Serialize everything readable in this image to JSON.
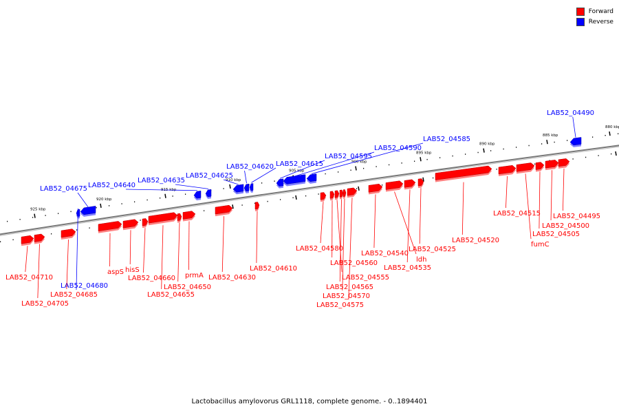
{
  "colors": {
    "forward": "#ff0000",
    "reverse": "#0000ff",
    "backbone": "#777777"
  },
  "legend": [
    {
      "label": "Forward",
      "color": "#ff0000"
    },
    {
      "label": "Reverse",
      "color": "#0000ff"
    }
  ],
  "caption": "Lactobacillus amylovorus GRL1118, complete genome. - 0..1894401",
  "ticks": [
    {
      "label": "925 kbp"
    },
    {
      "label": "920 kbp"
    },
    {
      "label": "915 kbp"
    },
    {
      "label": "910 kbp"
    },
    {
      "label": "905 kbp"
    },
    {
      "label": "900 kbp"
    },
    {
      "label": "895 kbp"
    },
    {
      "label": "890 kbp"
    },
    {
      "label": "885 kbp"
    },
    {
      "label": "880 kbp"
    }
  ],
  "genes": [
    {
      "label": "LAB52_04490",
      "strand": "reverse"
    },
    {
      "label": "LAB52_04585",
      "strand": "reverse"
    },
    {
      "label": "LAB52_04590",
      "strand": "reverse"
    },
    {
      "label": "LAB52_04595",
      "strand": "reverse"
    },
    {
      "label": "LAB52_04615",
      "strand": "reverse"
    },
    {
      "label": "LAB52_04620",
      "strand": "reverse"
    },
    {
      "label": "LAB52_04625",
      "strand": "reverse"
    },
    {
      "label": "LAB52_04635",
      "strand": "reverse"
    },
    {
      "label": "LAB52_04640",
      "strand": "reverse"
    },
    {
      "label": "LAB52_04675",
      "strand": "reverse"
    },
    {
      "label": "LAB52_04680",
      "strand": "reverse"
    },
    {
      "label": "LAB52_04710",
      "strand": "forward"
    },
    {
      "label": "LAB52_04705",
      "strand": "forward"
    },
    {
      "label": "LAB52_04685",
      "strand": "forward"
    },
    {
      "label": "aspS",
      "strand": "forward"
    },
    {
      "label": "hisS",
      "strand": "forward"
    },
    {
      "label": "LAB52_04660",
      "strand": "forward"
    },
    {
      "label": "LAB52_04655",
      "strand": "forward"
    },
    {
      "label": "LAB52_04650",
      "strand": "forward"
    },
    {
      "label": "prmA",
      "strand": "forward"
    },
    {
      "label": "LAB52_04630",
      "strand": "forward"
    },
    {
      "label": "LAB52_04610",
      "strand": "forward"
    },
    {
      "label": "LAB52_04580",
      "strand": "forward"
    },
    {
      "label": "LAB52_04560",
      "strand": "forward"
    },
    {
      "label": "LAB52_04555",
      "strand": "forward"
    },
    {
      "label": "LAB52_04565",
      "strand": "forward"
    },
    {
      "label": "LAB52_04570",
      "strand": "forward"
    },
    {
      "label": "LAB52_04575",
      "strand": "forward"
    },
    {
      "label": "LAB52_04540",
      "strand": "forward"
    },
    {
      "label": "ldh",
      "strand": "forward"
    },
    {
      "label": "LAB52_04535",
      "strand": "forward"
    },
    {
      "label": "LAB52_04525",
      "strand": "forward"
    },
    {
      "label": "LAB52_04520",
      "strand": "forward"
    },
    {
      "label": "LAB52_04515",
      "strand": "forward"
    },
    {
      "label": "fumC",
      "strand": "forward"
    },
    {
      "label": "LAB52_04505",
      "strand": "forward"
    },
    {
      "label": "LAB52_04500",
      "strand": "forward"
    },
    {
      "label": "LAB52_04495",
      "strand": "forward"
    }
  ]
}
